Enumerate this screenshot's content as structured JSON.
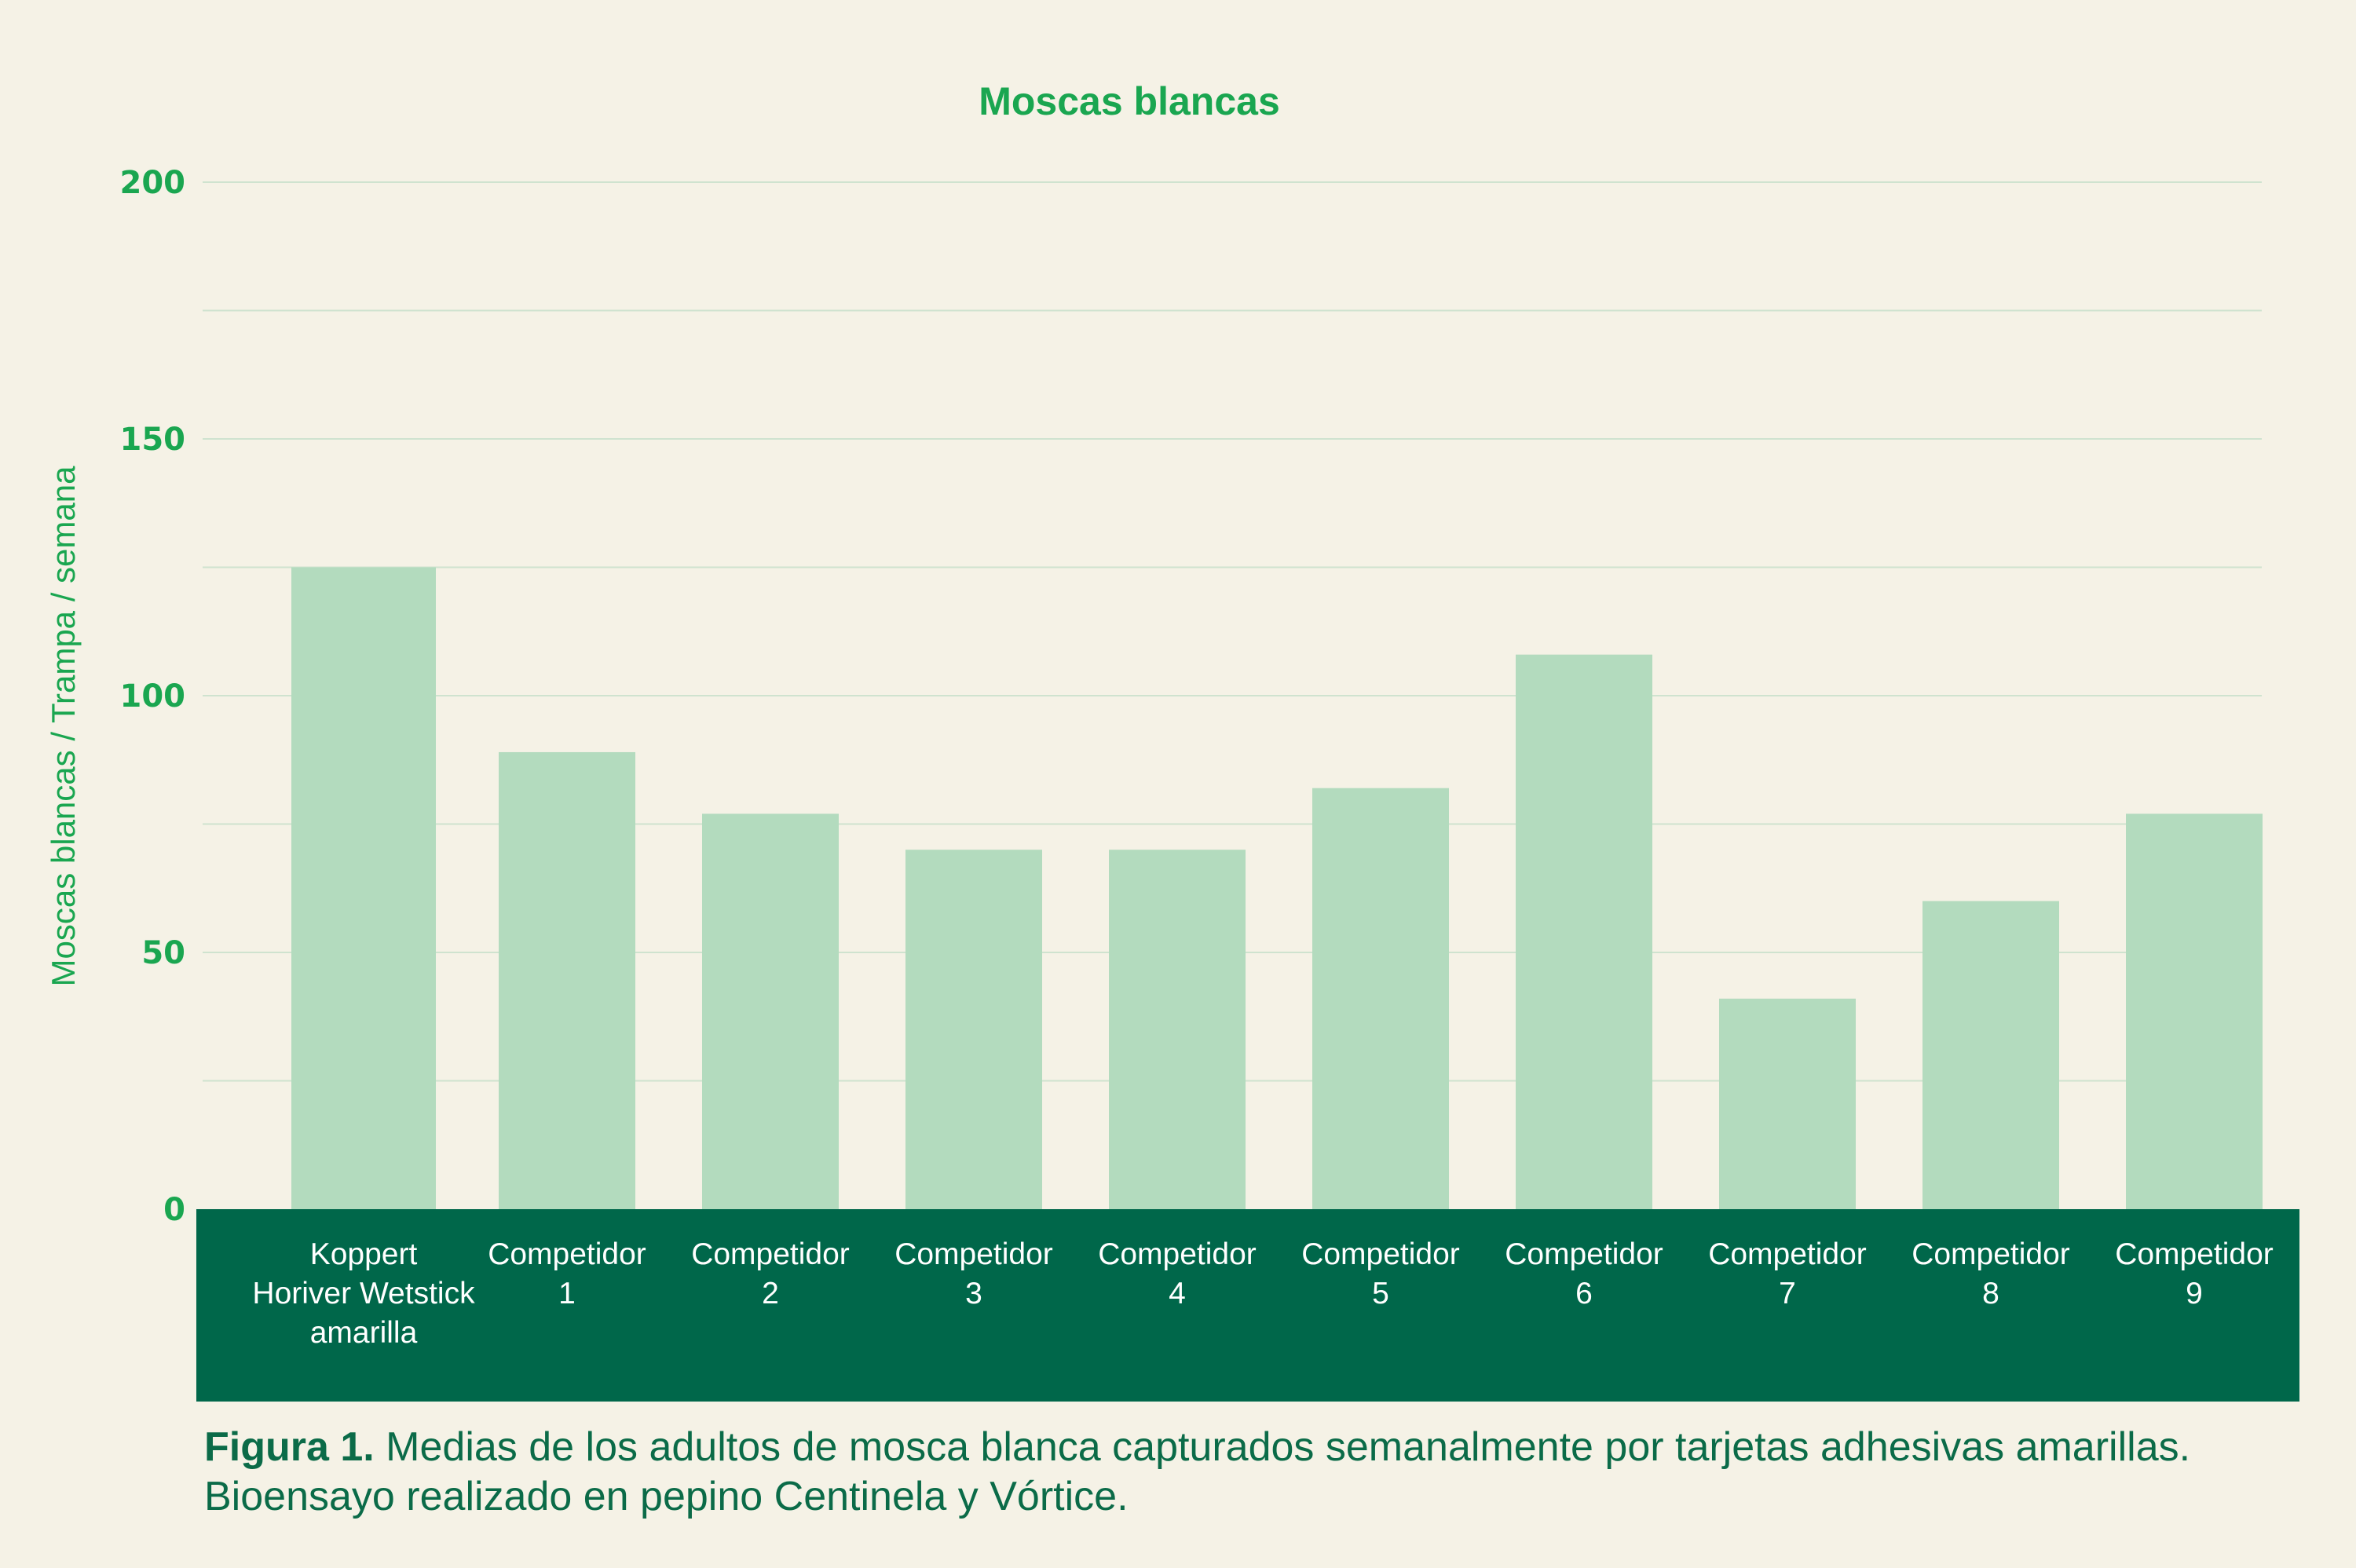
{
  "colors": {
    "background": "#f5f2e6",
    "accent": "#1aa650",
    "bar": "#b3dbbe",
    "grid": "#cfe3cf",
    "band": "#00674a",
    "band_text": "#ffffff",
    "caption": "#0b6b48"
  },
  "chart_data": {
    "type": "bar",
    "title": "Moscas blancas",
    "ylabel": "Moscas blancas / Trampa / semana",
    "xlabel": "",
    "ylim": [
      0,
      200
    ],
    "yticks": [
      "0",
      "50",
      "100",
      "150",
      "200"
    ],
    "grid": true,
    "categories": [
      "Koppert Horiver Wetstick amarilla",
      "Competidor 1",
      "Competidor 2",
      "Competidor 3",
      "Competidor 4",
      "Competidor 5",
      "Competidor 6",
      "Competidor 7",
      "Competidor 8",
      "Competidor 9"
    ],
    "category_lines": [
      [
        "Koppert",
        "Horiver Wetstick",
        "amarilla"
      ],
      [
        "Competidor",
        "1"
      ],
      [
        "Competidor",
        "2"
      ],
      [
        "Competidor",
        "3"
      ],
      [
        "Competidor",
        "4"
      ],
      [
        "Competidor",
        "5"
      ],
      [
        "Competidor",
        "6"
      ],
      [
        "Competidor",
        "7"
      ],
      [
        "Competidor",
        "8"
      ],
      [
        "Competidor",
        "9"
      ]
    ],
    "values": [
      125,
      89,
      77,
      70,
      70,
      82,
      108,
      41,
      60,
      77
    ]
  },
  "caption": {
    "lead": "Figura 1.",
    "text": " Medias de los adultos de mosca blanca capturados semanalmente por tarjetas adhesivas amarillas. Bioensayo realizado en pepino Centinela y Vórtice."
  }
}
